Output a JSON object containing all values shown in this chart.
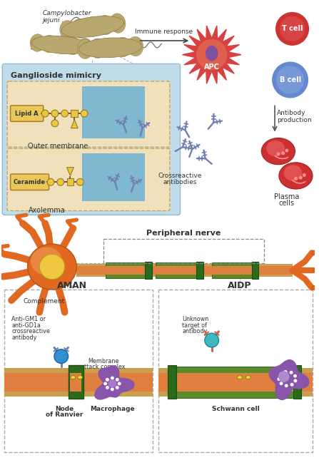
{
  "bg_color": "#ffffff",
  "bacteria_color": "#b8a870",
  "bacteria_label_1": "Campylobacter",
  "bacteria_label_2": "jejuni",
  "immune_arrow_label": "Immune response",
  "apc_color": "#d94040",
  "apc_nucleus_color": "#8050a0",
  "apc_label": "APC",
  "tcell_color": "#cc3333",
  "tcell_label": "T cell",
  "bcell_color": "#6688cc",
  "bcell_label": "B cell",
  "antibody_prod_label_1": "Antibody",
  "antibody_prod_label_2": "production",
  "crossreactive_label_1": "Crossreactive",
  "crossreactive_label_2": "antibodies",
  "plasma_label_1": "Plasma",
  "plasma_label_2": "cells",
  "plasma_color": "#cc3333",
  "ganglioside_box_color": "#b8dce8",
  "ganglioside_box_label": "Ganglioside mimicry",
  "outer_mem_box_color": "#f0e0c0",
  "outer_mem_label": "Outer membrane",
  "axolemma_box_color": "#f0e0c0",
  "axolemma_label": "Axolemma",
  "lipidA_label": "Lipid A",
  "ceramide_label": "Ceramide",
  "nerve_label": "Peripheral nerve",
  "neuron_body_color": "#e06820",
  "neuron_nucleus_color": "#f0c840",
  "myelin_color": "#5a8a2a",
  "axon_color": "#e08040",
  "aman_label": "AMAN",
  "aidp_label": "AIDP",
  "complement_label": "Complement",
  "antiGM1_label_1": "Anti-GM1 or",
  "antiGM1_label_2": "anti-GD1a",
  "antiGM1_label_3": "crossreactive",
  "antiGM1_label_4": "antibody",
  "membrane_attack_label_1": "Membrane",
  "membrane_attack_label_2": "attack complex",
  "node_ranvier_label_1": "Node",
  "node_ranvier_label_2": "of Ranvier",
  "macrophage_label": "Macrophage",
  "macrophage_color": "#8855aa",
  "unknown_target_label_1": "Unknown",
  "unknown_target_label_2": "target of",
  "unknown_target_label_3": "antibody",
  "schwann_label": "Schwann cell",
  "schwann_color": "#8855aa",
  "node_green_color": "#2a6a1a",
  "axon_orange_color": "#e08040",
  "tan_myelin_color": "#c8a050",
  "glycan_color": "#e8c840",
  "glycan_edge": "#a07820",
  "antibody_color_blue": "#7080b0",
  "antibody_color_red": "#cc6644"
}
